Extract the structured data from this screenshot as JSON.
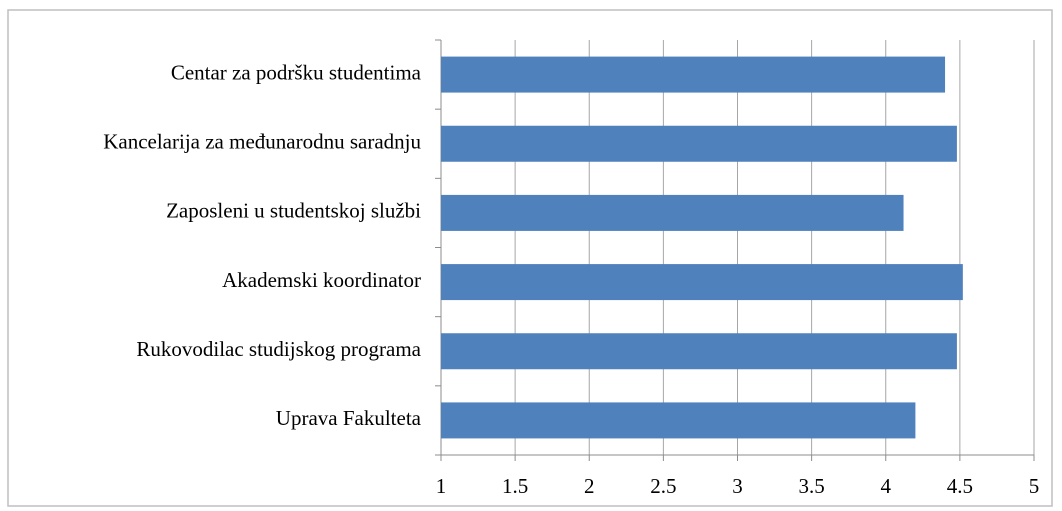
{
  "chart_data": {
    "type": "bar",
    "orientation": "horizontal",
    "categories": [
      "Centar za podršku studentima",
      "Kancelarija za međunarodnu saradnju",
      "Zaposleni u studentskoj službi",
      "Akademski koordinator",
      "Rukovodilac studijskog programa",
      "Uprava Fakulteta"
    ],
    "values": [
      4.4,
      4.48,
      4.12,
      4.52,
      4.48,
      4.2
    ],
    "color": "#4f81bd",
    "xlim": [
      1,
      5
    ],
    "xticks": [
      1,
      1.5,
      2,
      2.5,
      3,
      3.5,
      4,
      4.5,
      5
    ],
    "grid": true
  }
}
